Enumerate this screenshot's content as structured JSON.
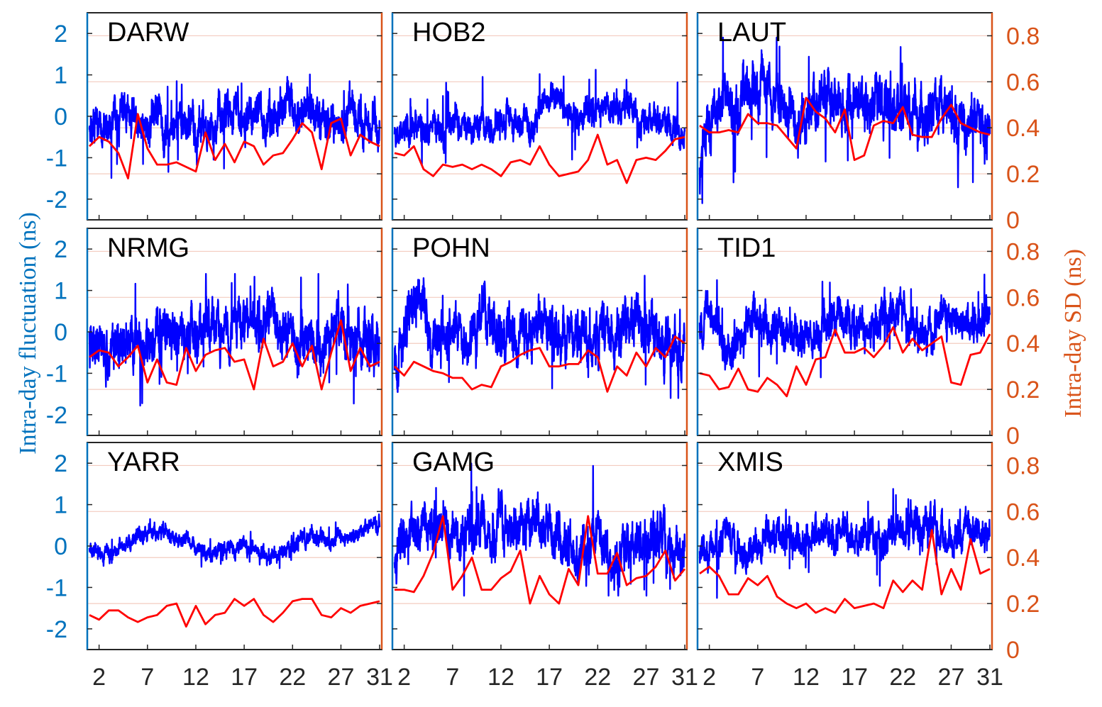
{
  "chart_data": {
    "type": "line",
    "ylabel_left": "Intra-day fluctuation (ns)",
    "ylabel_right": "Intra-day SD (ns)",
    "x_ticks": [
      "2",
      "7",
      "12",
      "17",
      "22",
      "27",
      "31"
    ],
    "xlim": [
      1,
      31
    ],
    "y_left_ticks": [
      "2",
      "1",
      "0",
      "-1",
      "-2"
    ],
    "y_left_lim": [
      -2.5,
      2.5
    ],
    "y_right_ticks": [
      "0.8",
      "0.6",
      "0.4",
      "0.2",
      "0"
    ],
    "y_right_lim": [
      0,
      0.9
    ],
    "grid_right": [
      0.2,
      0.4,
      0.6,
      0.8
    ],
    "colors": {
      "left_axis": "#0072bd",
      "right_axis": "#d95319",
      "fluctuation": "#0000ff",
      "sd": "#ff0000",
      "grid": "#f2c4b4"
    },
    "panels": [
      {
        "name": "DARW",
        "fluct": {
          "base": [
            -0.1,
            0.1,
            -0.4,
            -0.1,
            0.2,
            -0.3,
            -0.2,
            0.1,
            -0.5,
            0.0,
            -0.1,
            -0.4,
            -0.1,
            -0.3,
            0.0,
            0.1,
            -0.2,
            0.2,
            -0.1,
            0.0,
            0.3,
            0.1,
            0.2,
            0.3,
            -0.2,
            0.1,
            -0.3,
            0.1,
            0.0,
            -0.1,
            0.0
          ],
          "amp": 0.45,
          "min": -1.8,
          "max": 1.6,
          "seed": 11
        },
        "sd": [
          0.32,
          0.36,
          0.34,
          0.29,
          0.18,
          0.46,
          0.31,
          0.24,
          0.24,
          0.25,
          0.23,
          0.21,
          0.38,
          0.26,
          0.33,
          0.25,
          0.34,
          0.32,
          0.24,
          0.28,
          0.29,
          0.35,
          0.42,
          0.38,
          0.22,
          0.42,
          0.44,
          0.28,
          0.37,
          0.34,
          0.32
        ]
      },
      {
        "name": "HOB2",
        "fluct": {
          "base": [
            -0.3,
            -0.4,
            -0.2,
            -0.3,
            -0.2,
            -0.4,
            -0.3,
            -0.2,
            -0.3,
            -0.2,
            -0.3,
            -0.2,
            -0.1,
            -0.2,
            -0.1,
            0.2,
            0.6,
            0.4,
            0.2,
            0.0,
            0.1,
            0.2,
            0.3,
            0.1,
            0.2,
            0.1,
            -0.1,
            0.0,
            -0.2,
            -0.3,
            -0.5
          ],
          "amp": 0.35,
          "min": -1.5,
          "max": 1.4,
          "seed": 23
        },
        "sd": [
          0.29,
          0.28,
          0.32,
          0.22,
          0.19,
          0.24,
          0.23,
          0.24,
          0.22,
          0.24,
          0.22,
          0.19,
          0.25,
          0.26,
          0.24,
          0.32,
          0.24,
          0.19,
          0.2,
          0.21,
          0.26,
          0.37,
          0.24,
          0.26,
          0.16,
          0.26,
          0.27,
          0.26,
          0.3,
          0.35,
          0.36
        ]
      },
      {
        "name": "LAUT",
        "fluct": {
          "base": [
            -1.2,
            -0.2,
            0.2,
            0.4,
            0.2,
            0.5,
            0.3,
            0.6,
            0.4,
            0.5,
            0.3,
            0.0,
            0.2,
            0.5,
            0.6,
            0.3,
            0.4,
            0.5,
            0.2,
            0.3,
            0.4,
            0.2,
            0.0,
            -0.2,
            0.1,
            0.3,
            0.0,
            -0.2,
            0.2,
            0.0,
            -0.5
          ],
          "amp": 0.6,
          "min": -2.1,
          "max": 1.9,
          "seed": 37
        },
        "sd": [
          0.41,
          0.38,
          0.38,
          0.39,
          0.38,
          0.46,
          0.42,
          0.42,
          0.41,
          0.36,
          0.31,
          0.53,
          0.47,
          0.44,
          0.38,
          0.48,
          0.26,
          0.28,
          0.41,
          0.43,
          0.42,
          0.49,
          0.37,
          0.36,
          0.36,
          0.44,
          0.5,
          0.42,
          0.4,
          0.38,
          0.37
        ]
      },
      {
        "name": "NRMG",
        "fluct": {
          "base": [
            -0.2,
            -0.4,
            -0.5,
            -0.3,
            -0.2,
            -0.4,
            -0.3,
            -0.2,
            -0.1,
            0.0,
            -0.2,
            0.1,
            0.2,
            0.0,
            0.1,
            0.2,
            0.3,
            0.0,
            0.1,
            0.2,
            0.0,
            -0.2,
            -0.1,
            0.0,
            -0.2,
            -0.1,
            0.1,
            -0.3,
            -0.2,
            -0.1,
            -0.3
          ],
          "amp": 0.55,
          "min": -1.9,
          "max": 1.4,
          "seed": 41
        },
        "sd": [
          0.34,
          0.37,
          0.36,
          0.3,
          0.34,
          0.39,
          0.23,
          0.33,
          0.23,
          0.22,
          0.38,
          0.28,
          0.35,
          0.37,
          0.38,
          0.32,
          0.33,
          0.2,
          0.42,
          0.3,
          0.32,
          0.4,
          0.3,
          0.39,
          0.2,
          0.36,
          0.5,
          0.28,
          0.38,
          0.3,
          0.32
        ]
      },
      {
        "name": "POHN",
        "fluct": {
          "base": [
            -0.5,
            -0.3,
            0.8,
            0.6,
            -0.1,
            0.1,
            -0.2,
            0.2,
            0.0,
            0.3,
            0.1,
            -0.3,
            -0.2,
            0.1,
            0.2,
            0.3,
            0.1,
            0.0,
            0.2,
            -0.2,
            -0.1,
            0.1,
            0.3,
            0.0,
            0.4,
            0.2,
            0.1,
            -0.1,
            0.0,
            -0.3,
            -0.5
          ],
          "amp": 0.6,
          "min": -1.6,
          "max": 1.9,
          "seed": 53
        },
        "sd": [
          0.3,
          0.26,
          0.32,
          0.3,
          0.28,
          0.27,
          0.25,
          0.25,
          0.2,
          0.22,
          0.21,
          0.3,
          0.32,
          0.35,
          0.37,
          0.38,
          0.3,
          0.3,
          0.31,
          0.31,
          0.37,
          0.34,
          0.19,
          0.3,
          0.26,
          0.36,
          0.3,
          0.38,
          0.34,
          0.43,
          0.4
        ]
      },
      {
        "name": "TID1",
        "fluct": {
          "base": [
            0.4,
            0.3,
            0.2,
            -0.2,
            -0.3,
            0.0,
            0.2,
            0.3,
            0.1,
            0.2,
            -0.1,
            -0.3,
            0.0,
            0.2,
            0.5,
            0.3,
            0.2,
            0.0,
            0.2,
            0.4,
            0.3,
            0.5,
            0.1,
            0.0,
            -0.1,
            0.2,
            0.4,
            0.3,
            0.2,
            0.1,
            0.3
          ],
          "amp": 0.45,
          "min": -1.1,
          "max": 1.7,
          "seed": 67
        },
        "sd": [
          0.27,
          0.26,
          0.2,
          0.21,
          0.29,
          0.2,
          0.19,
          0.25,
          0.22,
          0.17,
          0.3,
          0.22,
          0.33,
          0.34,
          0.46,
          0.36,
          0.36,
          0.38,
          0.34,
          0.39,
          0.47,
          0.36,
          0.42,
          0.37,
          0.4,
          0.43,
          0.23,
          0.22,
          0.35,
          0.36,
          0.44
        ]
      },
      {
        "name": "YARR",
        "fluct": {
          "base": [
            0.0,
            -0.1,
            -0.2,
            -0.1,
            0.0,
            0.2,
            0.3,
            0.3,
            0.3,
            0.2,
            0.1,
            0.0,
            -0.2,
            -0.1,
            0.0,
            -0.1,
            0.0,
            -0.1,
            -0.2,
            -0.2,
            -0.1,
            0.0,
            0.2,
            0.3,
            0.1,
            0.2,
            0.2,
            0.3,
            0.4,
            0.4,
            0.5
          ],
          "amp": 0.18,
          "min": -0.8,
          "max": 0.9,
          "seed": 79
        },
        "sd": [
          0.15,
          0.13,
          0.17,
          0.17,
          0.14,
          0.12,
          0.14,
          0.15,
          0.19,
          0.2,
          0.1,
          0.19,
          0.11,
          0.15,
          0.16,
          0.22,
          0.19,
          0.22,
          0.15,
          0.12,
          0.16,
          0.21,
          0.22,
          0.22,
          0.15,
          0.14,
          0.18,
          0.16,
          0.19,
          0.2,
          0.21
        ]
      },
      {
        "name": "GAMG",
        "fluct": {
          "base": [
            0.0,
            0.1,
            0.3,
            0.2,
            0.4,
            0.6,
            0.2,
            0.3,
            0.1,
            0.4,
            0.2,
            0.5,
            0.3,
            0.6,
            0.4,
            0.5,
            0.2,
            0.3,
            0.1,
            -0.2,
            -0.3,
            0.6,
            -0.2,
            -0.3,
            0.1,
            0.0,
            0.2,
            0.1,
            0.3,
            -0.1,
            -0.3
          ],
          "amp": 0.55,
          "min": -1.2,
          "max": 2.3,
          "seed": 97
        },
        "sd": [
          0.26,
          0.26,
          0.25,
          0.32,
          0.42,
          0.58,
          0.26,
          0.32,
          0.4,
          0.26,
          0.26,
          0.31,
          0.34,
          0.43,
          0.2,
          0.32,
          0.24,
          0.2,
          0.35,
          0.28,
          0.58,
          0.33,
          0.33,
          0.42,
          0.28,
          0.31,
          0.32,
          0.36,
          0.43,
          0.3,
          0.35
        ]
      },
      {
        "name": "XMIS",
        "fluct": {
          "base": [
            -0.1,
            -0.3,
            0.0,
            0.2,
            -0.2,
            -0.4,
            0.1,
            0.3,
            0.2,
            0.3,
            0.2,
            0.1,
            0.3,
            0.2,
            0.2,
            0.3,
            0.1,
            0.2,
            0.3,
            0.2,
            0.3,
            0.4,
            0.6,
            0.5,
            0.4,
            0.3,
            0.1,
            0.2,
            0.3,
            0.2,
            0.3
          ],
          "amp": 0.4,
          "min": -1.5,
          "max": 1.5,
          "seed": 103
        },
        "sd": [
          0.33,
          0.36,
          0.32,
          0.24,
          0.24,
          0.31,
          0.28,
          0.32,
          0.23,
          0.2,
          0.18,
          0.2,
          0.16,
          0.18,
          0.16,
          0.22,
          0.18,
          0.19,
          0.2,
          0.18,
          0.3,
          0.25,
          0.3,
          0.26,
          0.52,
          0.24,
          0.35,
          0.26,
          0.48,
          0.33,
          0.35
        ]
      }
    ]
  }
}
